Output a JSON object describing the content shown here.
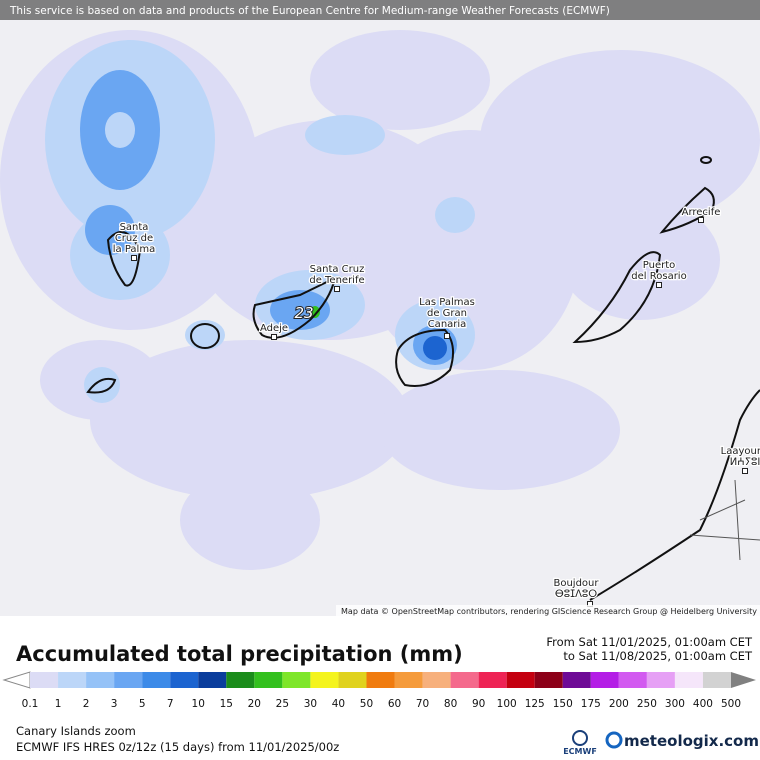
{
  "banner": "This service is based on data and products of the European Centre for Medium-range Weather Forecasts (ECMWF)",
  "map": {
    "places": [
      {
        "lines": [
          "Santa",
          "Cruz de",
          "la Palma"
        ]
      },
      {
        "lines": [
          "Santa Cruz",
          "de Tenerife"
        ]
      },
      {
        "lines": [
          "Adeje"
        ]
      },
      {
        "lines": [
          "Las Palmas",
          "de Gran",
          "Canaria"
        ]
      },
      {
        "lines": [
          "Puerto",
          "del Rosario"
        ]
      },
      {
        "lines": [
          "Arrecife"
        ]
      },
      {
        "lines": [
          "Laayoune",
          "ⵍⵄⵢⵓⵏ"
        ]
      },
      {
        "lines": [
          "Boujdour",
          "ⴱⵓⵊⴷⵓⵔ"
        ]
      }
    ],
    "max_value": 23,
    "attribution": "Map data © OpenStreetMap contributors, rendering GIScience Research Group @ Heidelberg University"
  },
  "legend": {
    "title": "Accumulated total precipitation (mm)",
    "from": "From Sat 11/01/2025, 01:00am CET",
    "to": "to Sat 11/08/2025, 01:00am CET",
    "labels": [
      0.1,
      1,
      2,
      3,
      5,
      7,
      10,
      15,
      20,
      25,
      30,
      40,
      50,
      60,
      70,
      80,
      90,
      100,
      125,
      150,
      175,
      200,
      250,
      300,
      400,
      500
    ],
    "colors": [
      "#dcdcf5",
      "#bcd6f8",
      "#95c2f7",
      "#6aa6f2",
      "#3c8ae8",
      "#1c64d0",
      "#0a3d9c",
      "#1b8c1b",
      "#33c01e",
      "#7ee62a",
      "#f4f41e",
      "#e0d21e",
      "#f07b0e",
      "#f59b3c",
      "#f7b07c",
      "#f46a8c",
      "#ee2455",
      "#c40010",
      "#8c0018",
      "#6e0a96",
      "#b41ee6",
      "#d25af0",
      "#e6a0f5",
      "#f5e6fa",
      "#d2d2d2"
    ],
    "below_color": "#ffffff",
    "above_color": "#808080"
  },
  "footer": {
    "region": "Canary Islands zoom",
    "model": "ECMWF IFS HRES 0z/12z (15 days) from 11/01/2025/00z",
    "ecmwf": "ECMWF",
    "brand": "meteologix.com"
  }
}
